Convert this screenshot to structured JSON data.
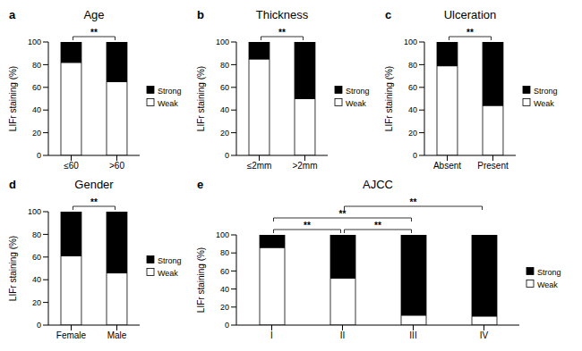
{
  "chart_data": [
    {
      "type": "bar",
      "panel_label": "a",
      "title": "Age",
      "categories": [
        "≤60",
        ">60"
      ],
      "series": [
        {
          "name": "Strong",
          "color": "#000000",
          "values": [
            18,
            35
          ]
        },
        {
          "name": "Weak",
          "color": "#ffffff",
          "values": [
            82,
            65
          ]
        }
      ],
      "stacked": true,
      "ylim": [
        0,
        100
      ],
      "yticks": [
        0,
        20,
        40,
        60,
        80,
        100
      ],
      "y_label": "LIFr staining (%)",
      "legend": "right",
      "annotations": [
        {
          "from": "≤60",
          "to": ">60",
          "text": "**"
        }
      ]
    },
    {
      "type": "bar",
      "panel_label": "b",
      "title": "Thickness",
      "categories": [
        "≤2mm",
        ">2mm"
      ],
      "series": [
        {
          "name": "Strong",
          "color": "#000000",
          "values": [
            15,
            50
          ]
        },
        {
          "name": "Weak",
          "color": "#ffffff",
          "values": [
            85,
            50
          ]
        }
      ],
      "stacked": true,
      "ylim": [
        0,
        100
      ],
      "yticks": [
        0,
        20,
        40,
        60,
        80,
        100
      ],
      "y_label": "LIFr staining (%)",
      "legend": "right",
      "annotations": [
        {
          "from": "≤2mm",
          "to": ">2mm",
          "text": "**"
        }
      ]
    },
    {
      "type": "bar",
      "panel_label": "c",
      "title": "Ulceration",
      "categories": [
        "Absent",
        "Present"
      ],
      "series": [
        {
          "name": "Strong",
          "color": "#000000",
          "values": [
            21,
            56
          ]
        },
        {
          "name": "Weak",
          "color": "#ffffff",
          "values": [
            79,
            44
          ]
        }
      ],
      "stacked": true,
      "ylim": [
        0,
        100
      ],
      "yticks": [
        0,
        20,
        40,
        60,
        80,
        100
      ],
      "y_label": "LIFr staining (%)",
      "legend": "right",
      "annotations": [
        {
          "from": "Absent",
          "to": "Present",
          "text": "**"
        }
      ]
    },
    {
      "type": "bar",
      "panel_label": "d",
      "title": "Gender",
      "categories": [
        "Female",
        "Male"
      ],
      "series": [
        {
          "name": "Strong",
          "color": "#000000",
          "values": [
            39,
            54
          ]
        },
        {
          "name": "Weak",
          "color": "#ffffff",
          "values": [
            61,
            46
          ]
        }
      ],
      "stacked": true,
      "ylim": [
        0,
        100
      ],
      "yticks": [
        0,
        20,
        40,
        60,
        80,
        100
      ],
      "y_label": "LIFr staining (%)",
      "legend": "right",
      "annotations": [
        {
          "from": "Female",
          "to": "Male",
          "text": "**"
        }
      ]
    },
    {
      "type": "bar",
      "panel_label": "e",
      "title": "AJCC",
      "categories": [
        "I",
        "II",
        "III",
        "IV"
      ],
      "series": [
        {
          "name": "Strong",
          "color": "#000000",
          "values": [
            14,
            48,
            89,
            90
          ]
        },
        {
          "name": "Weak",
          "color": "#ffffff",
          "values": [
            86,
            52,
            11,
            10
          ]
        }
      ],
      "stacked": true,
      "ylim": [
        0,
        100
      ],
      "yticks": [
        0,
        20,
        40,
        60,
        80,
        100
      ],
      "y_label": "LIFr staining (%)",
      "legend": "right",
      "annotations": [
        {
          "from": "I",
          "to": "II",
          "text": "**"
        },
        {
          "from": "II",
          "to": "III",
          "text": "**"
        },
        {
          "from": "I",
          "to": "III",
          "text": "**"
        },
        {
          "from": "II",
          "to": "IV",
          "text": "**"
        }
      ]
    }
  ]
}
